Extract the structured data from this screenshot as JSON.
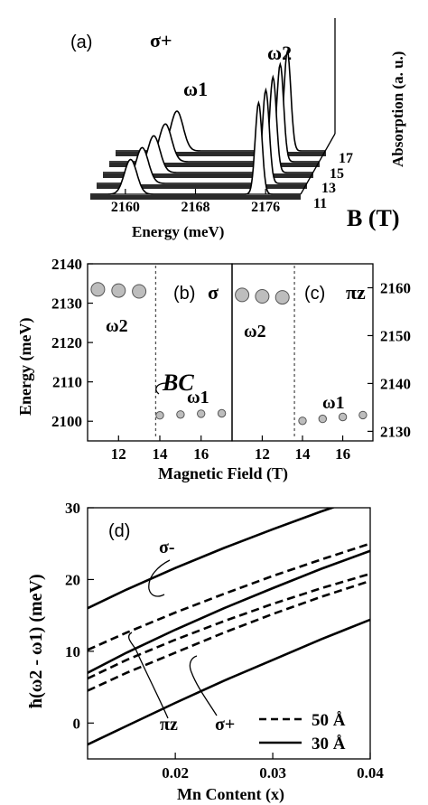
{
  "chart_data": [
    {
      "panel": "(a)",
      "type": "area",
      "polarization": "σ+",
      "peak_labels": [
        "ω1",
        "ω2"
      ],
      "xlabel": "Energy (meV)",
      "x_ticks": [
        "2160",
        "2168",
        "2176"
      ],
      "depth_label": "B (T)",
      "depth_ticks": [
        "11",
        "13",
        "15",
        "17"
      ],
      "zlabel": "Absorption (a. u.)",
      "series": [
        {
          "B": 17,
          "w1_energy": 2163.0,
          "w1_amp": 0.4,
          "w2_energy": 2175.6,
          "w2_amp": 1.0
        },
        {
          "B": 16,
          "w1_energy": 2162.4,
          "w1_amp": 0.38,
          "w2_energy": 2175.5,
          "w2_amp": 0.98
        },
        {
          "B": 15,
          "w1_energy": 2161.8,
          "w1_amp": 0.37,
          "w2_energy": 2175.4,
          "w2_amp": 0.96
        },
        {
          "B": 14,
          "w1_energy": 2161.2,
          "w1_amp": 0.36,
          "w2_energy": 2175.3,
          "w2_amp": 0.94
        },
        {
          "B": 11,
          "w1_energy": 2160.6,
          "w1_amp": 0.35,
          "w2_energy": 2175.2,
          "w2_amp": 0.92
        }
      ]
    },
    {
      "panel": "(b)",
      "type": "scatter",
      "polarization": "σ",
      "ylabel": "Energy (meV)",
      "ylim": [
        2095,
        2140
      ],
      "y_ticks": [
        2100,
        2110,
        2120,
        2130,
        2140
      ],
      "xlim": [
        10.5,
        17.5
      ],
      "x_ticks": [
        12,
        14,
        16
      ],
      "critical_field_label": "BC",
      "critical_field": 13.8,
      "series": [
        {
          "name": "ω2",
          "x": [
            11,
            12,
            13
          ],
          "y": [
            2133.5,
            2133.2,
            2133.0
          ]
        },
        {
          "name": "ω1",
          "x": [
            14,
            15,
            16,
            17
          ],
          "y": [
            2101.5,
            2101.7,
            2101.9,
            2102.0
          ]
        }
      ]
    },
    {
      "panel": "(c)",
      "type": "scatter",
      "polarization": "πz",
      "ylim": [
        2128,
        2165
      ],
      "y_ticks": [
        2130,
        2140,
        2150,
        2160
      ],
      "xlim": [
        10.5,
        17.5
      ],
      "x_ticks": [
        12,
        14,
        16
      ],
      "critical_field": 13.6,
      "series": [
        {
          "name": "ω2",
          "x": [
            11,
            12,
            13
          ],
          "y": [
            2158.5,
            2158.2,
            2158.0
          ]
        },
        {
          "name": "ω1",
          "x": [
            14,
            15,
            16,
            17
          ],
          "y": [
            2132.2,
            2132.6,
            2133.0,
            2133.4
          ]
        }
      ]
    },
    {
      "panel": "(d)",
      "type": "line",
      "xlabel": "Mn Content (x)",
      "ylabel": "ħ(ω2 - ω1) (meV)",
      "xlim": [
        0.011,
        0.04
      ],
      "ylim": [
        -5,
        30
      ],
      "x_ticks": [
        0.02,
        0.03,
        0.04
      ],
      "y_ticks": [
        0,
        10,
        20,
        30
      ],
      "legend": [
        {
          "name": "50 Å",
          "style": "dashed"
        },
        {
          "name": "30 Å",
          "style": "solid"
        }
      ],
      "legend_position": "bottom-right",
      "annotations": [
        "σ-",
        "πz",
        "σ+"
      ],
      "series": [
        {
          "group": "σ-",
          "width": "30 Å",
          "x": [
            0.011,
            0.015,
            0.02,
            0.025,
            0.03,
            0.035,
            0.04
          ],
          "y": [
            16,
            18.6,
            21.6,
            24.4,
            27.0,
            29.5,
            31.8
          ]
        },
        {
          "group": "σ-",
          "width": "50 Å",
          "x": [
            0.011,
            0.015,
            0.02,
            0.025,
            0.03,
            0.035,
            0.04
          ],
          "y": [
            10.2,
            12.6,
            15.4,
            18.0,
            20.5,
            22.8,
            25.0
          ]
        },
        {
          "group": "πz",
          "width": "30 Å",
          "x": [
            0.011,
            0.015,
            0.02,
            0.025,
            0.03,
            0.035,
            0.04
          ],
          "y": [
            7,
            9.8,
            13.0,
            16.0,
            18.8,
            21.5,
            24.0
          ]
        },
        {
          "group": "πz",
          "width": "50 Å",
          "x": [
            0.011,
            0.015,
            0.02,
            0.025,
            0.03,
            0.035,
            0.04
          ],
          "y": [
            6.2,
            8.8,
            11.6,
            14.2,
            16.6,
            18.8,
            20.8
          ]
        },
        {
          "group": "σ+",
          "width": "50 Å",
          "x": [
            0.011,
            0.015,
            0.02,
            0.025,
            0.03,
            0.035,
            0.04
          ],
          "y": [
            4.5,
            7.0,
            9.8,
            12.6,
            15.2,
            17.6,
            19.8
          ]
        },
        {
          "group": "σ+",
          "width": "30 Å",
          "x": [
            0.011,
            0.015,
            0.02,
            0.025,
            0.03,
            0.035,
            0.04
          ],
          "y": [
            -3,
            -0.4,
            2.8,
            5.9,
            8.8,
            11.7,
            14.4
          ]
        }
      ]
    }
  ]
}
